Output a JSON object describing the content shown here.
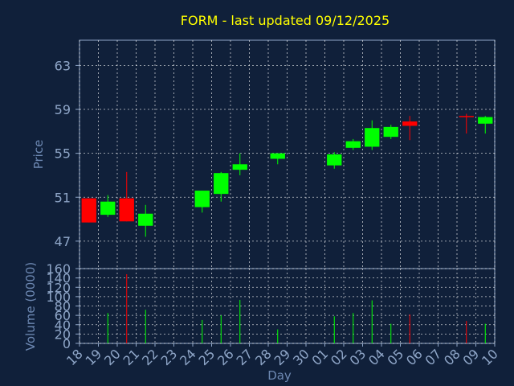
{
  "colors": {
    "background": "#10203a",
    "title": "#ffff00",
    "axis_text": "#8fa6c8",
    "axis_title": "#6d88b2",
    "grid": "#ffffff",
    "up": "#00ff00",
    "down": "#ff0000"
  },
  "chart_data": {
    "type": "candlestick",
    "title": "FORM - last updated 09/12/2025",
    "price_axis": {
      "label": "Price",
      "ticks": [
        47,
        51,
        55,
        59,
        63
      ],
      "ylim": [
        44.5,
        65.3
      ]
    },
    "volume_axis": {
      "label": "Volume (0000)",
      "ticks": [
        0,
        20,
        40,
        60,
        80,
        100,
        120,
        140,
        160
      ],
      "ylim": [
        0,
        160
      ]
    },
    "xlabel": "Day",
    "x_ticks": [
      "18",
      "19",
      "20",
      "21",
      "22",
      "23",
      "24",
      "25",
      "26",
      "27",
      "28",
      "29",
      "30",
      "01",
      "02",
      "03",
      "04",
      "05",
      "06",
      "07",
      "08",
      "09",
      "10"
    ],
    "candles": [
      {
        "day": "18",
        "open": 50.9,
        "high": 50.9,
        "low": 48.7,
        "close": 48.7,
        "volume": 0
      },
      {
        "day": "19",
        "open": 49.4,
        "high": 51.2,
        "low": 49.2,
        "close": 50.6,
        "volume": 65
      },
      {
        "day": "20",
        "open": 50.9,
        "high": 53.3,
        "low": 48.8,
        "close": 48.8,
        "volume": 148
      },
      {
        "day": "21",
        "open": 48.4,
        "high": 50.3,
        "low": 47.4,
        "close": 49.5,
        "volume": 72
      },
      {
        "day": "24",
        "open": 50.1,
        "high": 51.6,
        "low": 49.6,
        "close": 51.6,
        "volume": 50
      },
      {
        "day": "25",
        "open": 51.3,
        "high": 53.3,
        "low": 50.6,
        "close": 53.2,
        "volume": 60
      },
      {
        "day": "26",
        "open": 53.5,
        "high": 55.0,
        "low": 53.0,
        "close": 54.0,
        "volume": 93
      },
      {
        "day": "28",
        "open": 54.5,
        "high": 55.0,
        "low": 54.0,
        "close": 55.0,
        "volume": 30
      },
      {
        "day": "01",
        "open": 53.9,
        "high": 55.1,
        "low": 53.6,
        "close": 54.9,
        "volume": 58
      },
      {
        "day": "02",
        "open": 55.5,
        "high": 56.3,
        "low": 55.3,
        "close": 56.1,
        "volume": 65
      },
      {
        "day": "03",
        "open": 55.6,
        "high": 58.0,
        "low": 55.3,
        "close": 57.3,
        "volume": 92
      },
      {
        "day": "04",
        "open": 56.5,
        "high": 57.6,
        "low": 56.3,
        "close": 57.4,
        "volume": 42
      },
      {
        "day": "05",
        "open": 57.9,
        "high": 58.4,
        "low": 56.2,
        "close": 57.5,
        "volume": 62
      },
      {
        "day": "08",
        "open": 58.4,
        "high": 58.6,
        "low": 56.8,
        "close": 58.3,
        "volume": 48
      },
      {
        "day": "09",
        "open": 57.7,
        "high": 58.4,
        "low": 56.8,
        "close": 58.3,
        "volume": 42
      }
    ]
  }
}
